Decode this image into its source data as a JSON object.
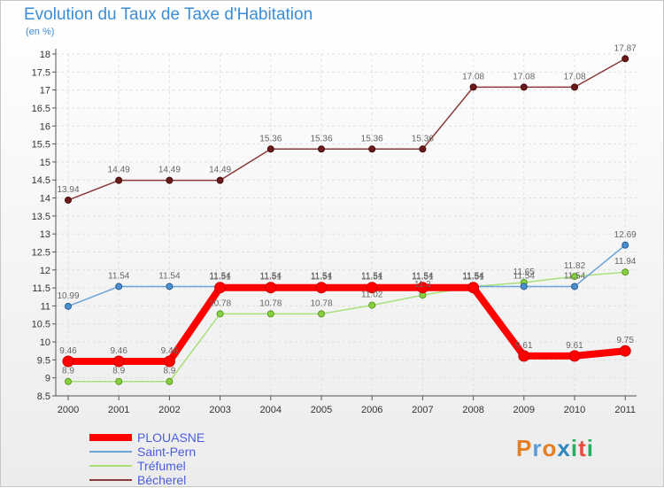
{
  "chart_data": {
    "type": "line",
    "title": "Evolution du Taux de Taxe d'Habitation",
    "ylabel": "(en %)",
    "xlabel": "",
    "categories": [
      "2000",
      "2001",
      "2002",
      "2003",
      "2004",
      "2005",
      "2006",
      "2007",
      "2008",
      "2009",
      "2010",
      "2011"
    ],
    "ylim": [
      8.5,
      18
    ],
    "yticks": [
      8.5,
      9,
      9.5,
      10,
      10.5,
      11,
      11.5,
      12,
      12.5,
      13,
      13.5,
      14,
      14.5,
      15,
      15.5,
      16,
      16.5,
      17,
      17.5,
      18
    ],
    "grid": true,
    "series": [
      {
        "name": "PLOUASNE",
        "color": "#ee0000",
        "values": [
          9.46,
          9.46,
          9.46,
          11.51,
          11.51,
          11.51,
          11.51,
          11.51,
          11.51,
          9.61,
          9.61,
          9.75
        ],
        "labels": [
          "9.46",
          "9.46",
          "9.46",
          "11.51",
          "11.51",
          "11.51",
          "11.51",
          "11.51",
          "11.51",
          "9.61",
          "9.61",
          "9.75"
        ]
      },
      {
        "name": "Saint-Pern",
        "color": "#5b9bd5",
        "values": [
          10.99,
          11.54,
          11.54,
          11.54,
          11.54,
          11.54,
          11.54,
          11.54,
          11.54,
          11.54,
          11.54,
          12.69
        ],
        "labels": [
          "10.99",
          "11.54",
          "11.54",
          "11.54",
          "11.54",
          "11.54",
          "11.54",
          "11.54",
          "11.54",
          "11.54",
          "11.54",
          "12.69"
        ]
      },
      {
        "name": "Tréfumel",
        "color": "#99dd66",
        "values": [
          8.9,
          8.9,
          8.9,
          10.78,
          10.78,
          10.78,
          11.02,
          11.3,
          11.54,
          11.65,
          11.82,
          11.94
        ],
        "labels": [
          "8.9",
          "8.9",
          "8.9",
          "10.78",
          "10.78",
          "10.78",
          "11.02",
          "11.3",
          "11.54",
          "11.65",
          "11.82",
          "11.94"
        ]
      },
      {
        "name": "Bécherel",
        "color": "#7a2a2a",
        "values": [
          13.94,
          14.49,
          14.49,
          14.49,
          15.36,
          15.36,
          15.36,
          15.36,
          17.08,
          17.08,
          17.08,
          17.87
        ],
        "labels": [
          "13.94",
          "14.49",
          "14.49",
          "14.49",
          "15.36",
          "15.36",
          "15.36",
          "15.36",
          "17.08",
          "17.08",
          "17.08",
          "17.87"
        ]
      }
    ]
  },
  "logo": {
    "chars": [
      "P",
      "r",
      "o",
      "x",
      "i",
      "t",
      "i"
    ]
  }
}
